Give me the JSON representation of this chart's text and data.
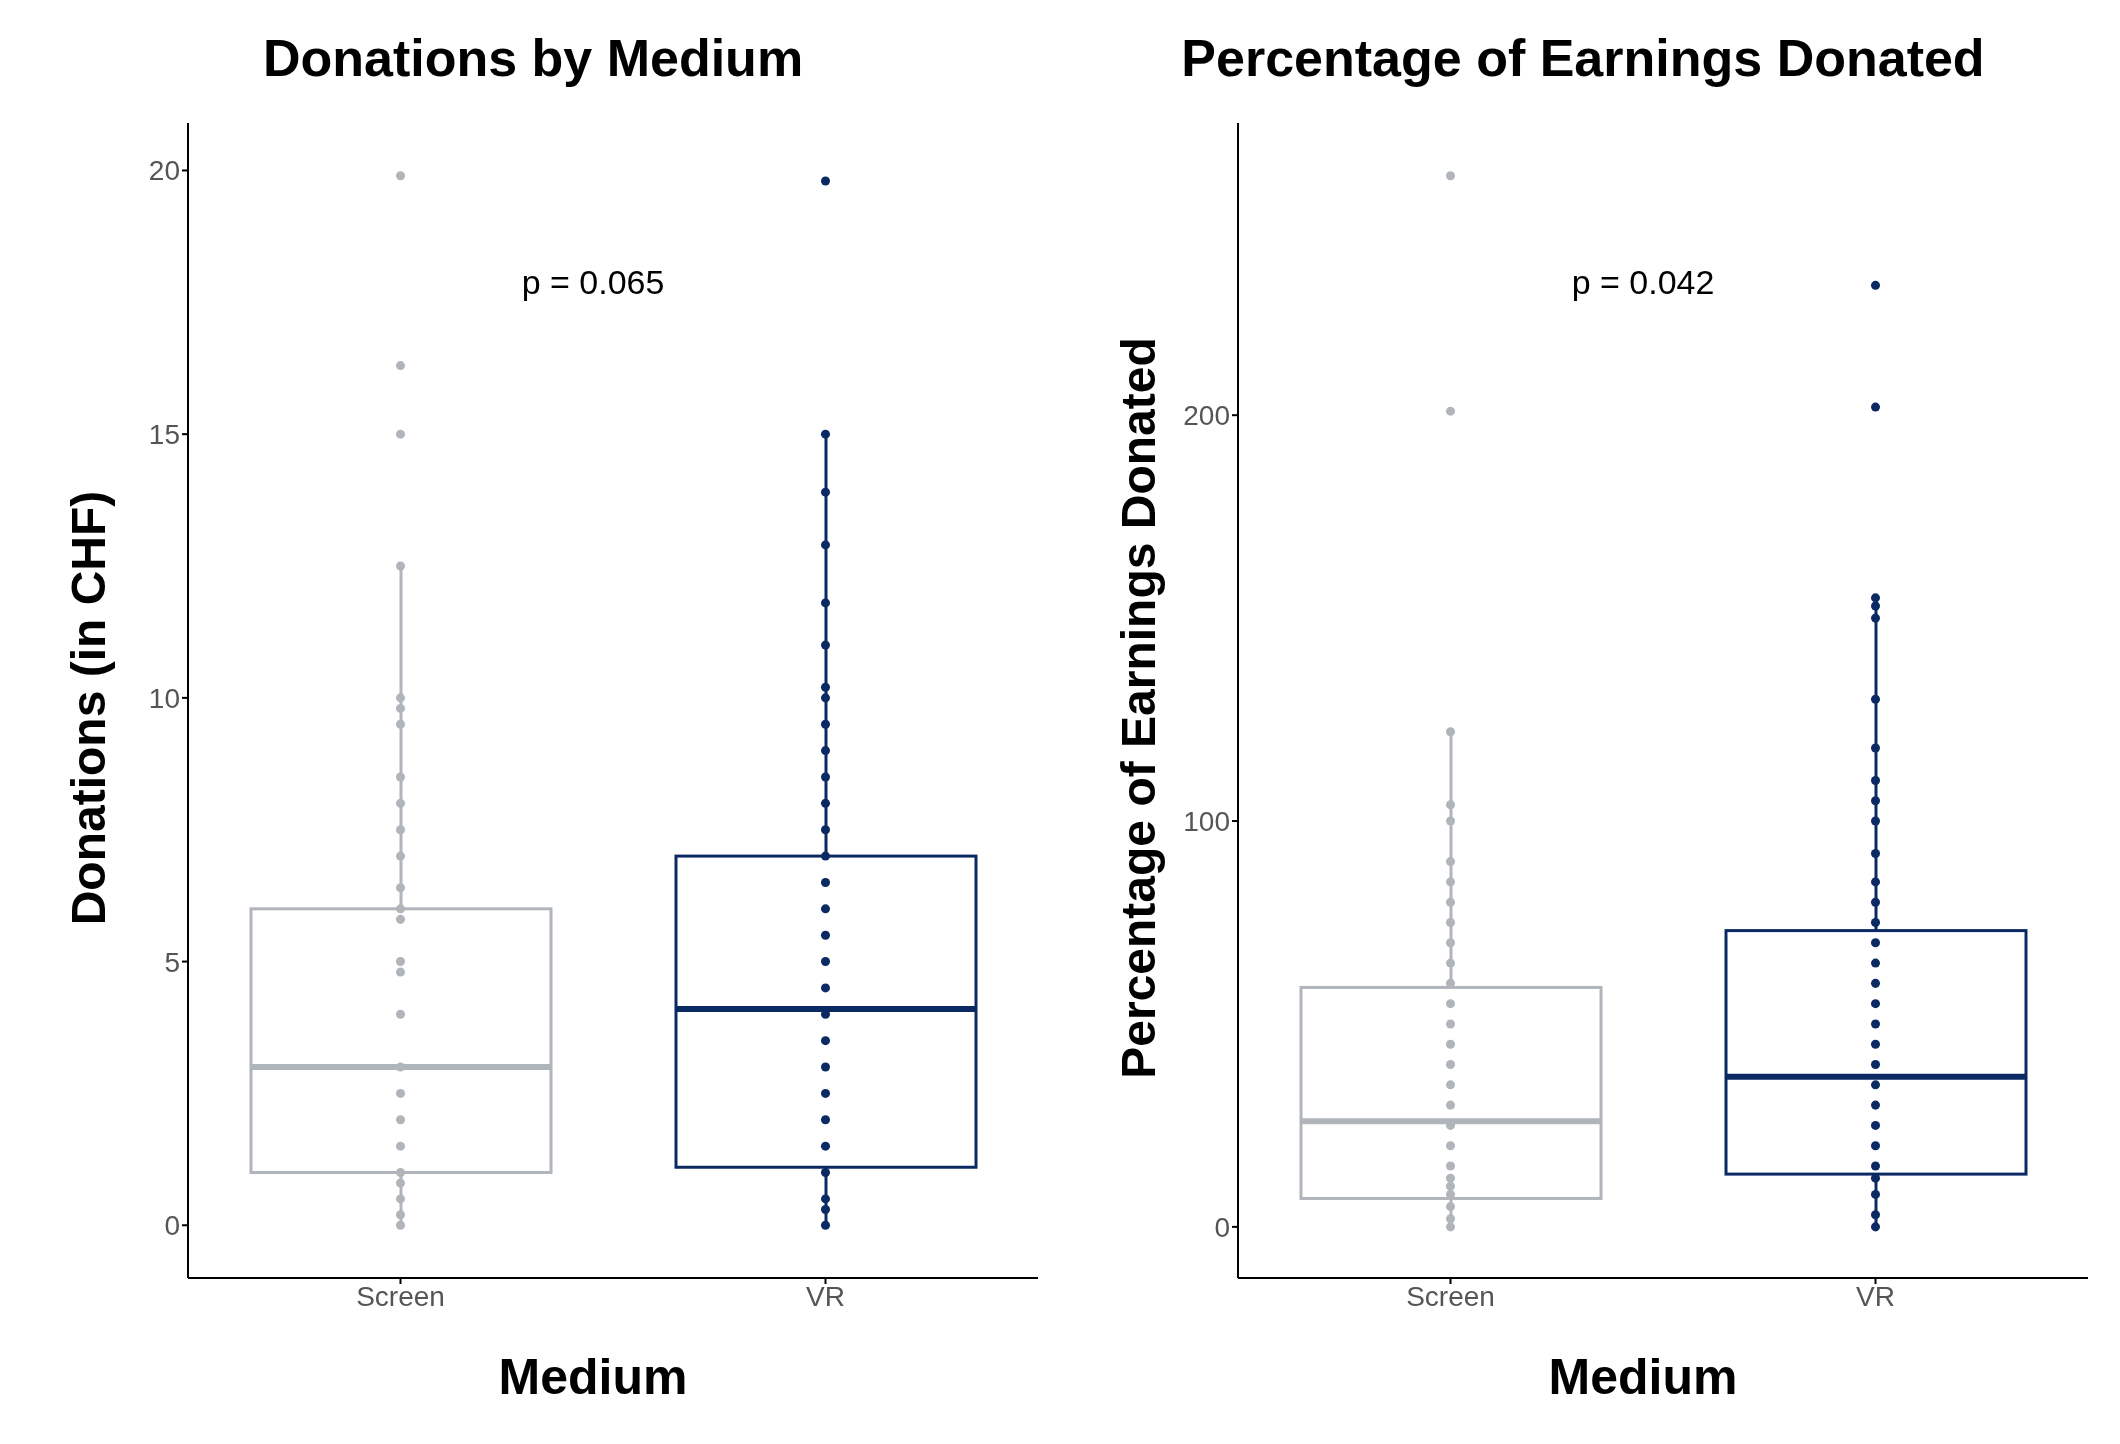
{
  "chart_data": [
    {
      "type": "box",
      "title": "Donations by Medium",
      "xlabel": "Medium",
      "ylabel": "Donations (in CHF)",
      "categories": [
        "Screen",
        "VR"
      ],
      "colors": [
        "#b0b5bb",
        "#0b2a63"
      ],
      "ylim": [
        -1,
        20.9
      ],
      "yticks": [
        0,
        5,
        10,
        15,
        20
      ],
      "grid": false,
      "legend": false,
      "annotations": [
        "p = 0.065"
      ],
      "boxes": [
        {
          "low": 0,
          "q1": 1,
          "median": 3,
          "q3": 6,
          "high": 12.5
        },
        {
          "low": 0,
          "q1": 1.1,
          "median": 4.1,
          "q3": 7,
          "high": 15
        }
      ],
      "series": [
        {
          "type": "scatter",
          "color": "#b0b5bb",
          "x": [
            "Screen",
            "Screen",
            "Screen",
            "Screen",
            "Screen",
            "Screen",
            "Screen",
            "Screen",
            "Screen",
            "Screen",
            "Screen",
            "Screen",
            "Screen",
            "Screen",
            "Screen",
            "Screen",
            "Screen",
            "Screen",
            "Screen",
            "Screen",
            "Screen",
            "Screen",
            "Screen",
            "Screen",
            "Screen",
            "Screen"
          ],
          "values": [
            0,
            0.2,
            0.5,
            0.8,
            1,
            1.5,
            2,
            2.5,
            3,
            4,
            4.8,
            5,
            5.8,
            6,
            6.4,
            7,
            7.5,
            8,
            8.5,
            9.5,
            9.8,
            10,
            12.5,
            15,
            16.3,
            19.9
          ]
        },
        {
          "type": "scatter",
          "color": "#0b2a63",
          "x": [
            "VR",
            "VR",
            "VR",
            "VR",
            "VR",
            "VR",
            "VR",
            "VR",
            "VR",
            "VR",
            "VR",
            "VR",
            "VR",
            "VR",
            "VR",
            "VR",
            "VR",
            "VR",
            "VR",
            "VR",
            "VR",
            "VR",
            "VR",
            "VR",
            "VR",
            "VR",
            "VR",
            "VR",
            "VR"
          ],
          "values": [
            0,
            0.3,
            0.5,
            1,
            1.5,
            2,
            2.5,
            3,
            3.5,
            4,
            4.5,
            5,
            5.5,
            6,
            6.5,
            7,
            7.5,
            8,
            8.5,
            9,
            9.5,
            10,
            10.2,
            11,
            11.8,
            12.9,
            13.9,
            15,
            19.8
          ]
        }
      ]
    },
    {
      "type": "box",
      "title": "Percentage of Earnings Donated",
      "xlabel": "Medium",
      "ylabel": "Percentage of Earnings Donated",
      "categories": [
        "Screen",
        "VR"
      ],
      "colors": [
        "#b0b5bb",
        "#0b2a63"
      ],
      "ylim": [
        -12.6,
        272
      ],
      "yticks": [
        0,
        100,
        200
      ],
      "grid": false,
      "legend": false,
      "annotations": [
        "p = 0.042"
      ],
      "boxes": [
        {
          "low": 0,
          "q1": 7,
          "median": 26,
          "q3": 59,
          "high": 122
        },
        {
          "low": 0,
          "q1": 13,
          "median": 37,
          "q3": 73,
          "high": 155
        }
      ],
      "series": [
        {
          "type": "scatter",
          "color": "#b0b5bb",
          "x": [
            "Screen",
            "Screen",
            "Screen",
            "Screen",
            "Screen",
            "Screen",
            "Screen",
            "Screen",
            "Screen",
            "Screen",
            "Screen",
            "Screen",
            "Screen",
            "Screen",
            "Screen",
            "Screen",
            "Screen",
            "Screen",
            "Screen",
            "Screen",
            "Screen",
            "Screen",
            "Screen",
            "Screen",
            "Screen",
            "Screen",
            "Screen"
          ],
          "values": [
            0,
            2,
            5,
            8,
            10,
            12,
            15,
            20,
            25,
            30,
            35,
            40,
            45,
            50,
            55,
            60,
            65,
            70,
            75,
            80,
            85,
            90,
            100,
            104,
            122,
            201,
            259
          ]
        },
        {
          "type": "scatter",
          "color": "#0b2a63",
          "x": [
            "VR",
            "VR",
            "VR",
            "VR",
            "VR",
            "VR",
            "VR",
            "VR",
            "VR",
            "VR",
            "VR",
            "VR",
            "VR",
            "VR",
            "VR",
            "VR",
            "VR",
            "VR",
            "VR",
            "VR",
            "VR",
            "VR",
            "VR",
            "VR",
            "VR",
            "VR",
            "VR",
            "VR",
            "VR",
            "VR"
          ],
          "values": [
            0,
            3,
            8,
            12,
            15,
            20,
            25,
            30,
            35,
            40,
            45,
            50,
            55,
            60,
            65,
            70,
            75,
            80,
            85,
            92,
            100,
            105,
            110,
            118,
            130,
            150,
            153,
            155,
            202,
            232
          ]
        }
      ]
    }
  ]
}
